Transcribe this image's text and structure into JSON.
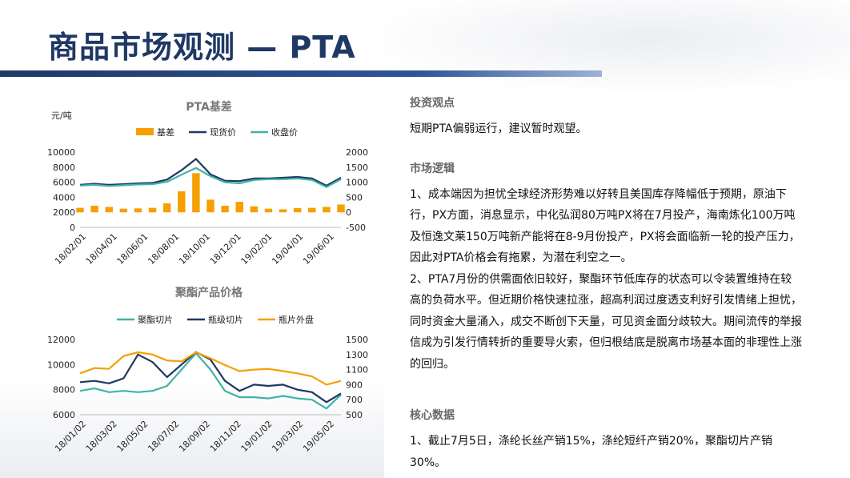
{
  "page": {
    "title": "商品市场观测 — PTA"
  },
  "right": {
    "view_heading": "投资观点",
    "view_text": "短期PTA偏弱运行，建议暂时观望。",
    "logic_heading": "市场逻辑",
    "logic_p1": "1、成本端因为担忧全球经济形势难以好转且美国库存降幅低于预期，原油下行，PX方面，消息显示，中化弘润80万吨PX将在7月投产，海南炼化100万吨及恒逸文莱150万吨新产能将在8-9月份投产，PX将会面临新一轮的投产压力，因此对PTA价格会有拖累，为潜在利空之一。",
    "logic_p2": "2、PTA7月份的供需面依旧较好，聚酯环节低库存的状态可以令装置维持在较高的负荷水平。但近期价格快速拉涨，超高利润过度透支利好引发情绪上担忧，同时资金大量涌入，成交不断创下天量，可见资金面分歧较大。期间流传的举报信成为引发行情转折的重要导火索，但归根结底是脱离市场基本面的非理性上涨的回归。",
    "core_heading": "核心数据",
    "core_p1": "1、截止7月5日，涤纶长丝产销15%，涤纶短纤产销20%，聚酯切片产销30%。"
  },
  "chart_data": [
    {
      "type": "line",
      "title": "PTA基差",
      "ylabel": "元/吨",
      "ylim": [
        0,
        10000
      ],
      "y2lim": [
        -500,
        2000
      ],
      "yticks": [
        "10000",
        "8000",
        "6000",
        "4000",
        "2000",
        "0"
      ],
      "y2ticks": [
        "2000",
        "1500",
        "1000",
        "500",
        "0",
        "-500"
      ],
      "x_ticks": [
        "18/02/01",
        "18/04/01",
        "18/06/01",
        "18/08/01",
        "18/10/01",
        "18/12/01",
        "19/02/01",
        "19/04/01",
        "19/06/01"
      ],
      "x": [
        "18/01",
        "18/02",
        "18/03",
        "18/04",
        "18/05",
        "18/06",
        "18/07",
        "18/08",
        "18/09",
        "18/10",
        "18/11",
        "18/12",
        "19/01",
        "19/02",
        "19/03",
        "19/04",
        "19/05",
        "19/06",
        "19/07"
      ],
      "legend_position": "top",
      "series": [
        {
          "name": "基差",
          "kind": "bar",
          "axis": "right",
          "color": "#f5a000",
          "values": [
            150,
            220,
            180,
            120,
            130,
            150,
            300,
            700,
            1300,
            420,
            220,
            350,
            200,
            120,
            100,
            140,
            150,
            180,
            260
          ]
        },
        {
          "name": "现货价",
          "kind": "line",
          "axis": "left",
          "color": "#1f3864",
          "values": [
            5650,
            5800,
            5650,
            5750,
            5850,
            5900,
            6350,
            7600,
            9100,
            7050,
            6200,
            6150,
            6500,
            6500,
            6600,
            6700,
            6500,
            5550,
            6600
          ]
        },
        {
          "name": "收盘价",
          "kind": "line",
          "axis": "left",
          "color": "#3fb4a4",
          "values": [
            5550,
            5650,
            5500,
            5600,
            5700,
            5750,
            6050,
            7000,
            7900,
            6800,
            6000,
            5850,
            6300,
            6400,
            6400,
            6500,
            6300,
            5350,
            6400
          ]
        }
      ]
    },
    {
      "type": "line",
      "title": "聚酯产品价格",
      "ylim": [
        6000,
        12000
      ],
      "y2lim": [
        500,
        1500
      ],
      "yticks": [
        "12000",
        "10000",
        "8000",
        "6000"
      ],
      "y2ticks": [
        "1500",
        "1300",
        "1100",
        "900",
        "700",
        "500"
      ],
      "x_ticks": [
        "18/01/02",
        "18/03/02",
        "18/05/02",
        "18/07/02",
        "18/09/02",
        "18/11/02",
        "19/01/02",
        "19/03/02",
        "19/05/02"
      ],
      "x": [
        "18/01",
        "18/02",
        "18/03",
        "18/04",
        "18/05",
        "18/06",
        "18/07",
        "18/08",
        "18/09",
        "18/10",
        "18/11",
        "18/12",
        "19/01",
        "19/02",
        "19/03",
        "19/04",
        "19/05",
        "19/06",
        "19/07"
      ],
      "legend_position": "top",
      "series": [
        {
          "name": "聚酯切片",
          "kind": "line",
          "axis": "left",
          "color": "#3fb4a4",
          "values": [
            7900,
            8100,
            7800,
            7900,
            7800,
            7900,
            8300,
            9600,
            10900,
            9600,
            7900,
            7400,
            7400,
            7300,
            7500,
            7300,
            7200,
            6500,
            7600
          ]
        },
        {
          "name": "瓶级切片",
          "kind": "line",
          "axis": "left",
          "color": "#1f3864",
          "values": [
            8600,
            8700,
            8500,
            8900,
            10800,
            10200,
            9000,
            10000,
            11000,
            10400,
            8700,
            7900,
            8400,
            8300,
            8400,
            8000,
            7800,
            7000,
            7700
          ]
        },
        {
          "name": "瓶片外盘",
          "kind": "line",
          "axis": "right",
          "color": "#f5a000",
          "values": [
            1050,
            1120,
            1110,
            1280,
            1330,
            1300,
            1220,
            1210,
            1330,
            1250,
            1160,
            1080,
            1100,
            1110,
            1080,
            1050,
            1010,
            900,
            950
          ]
        }
      ]
    }
  ]
}
